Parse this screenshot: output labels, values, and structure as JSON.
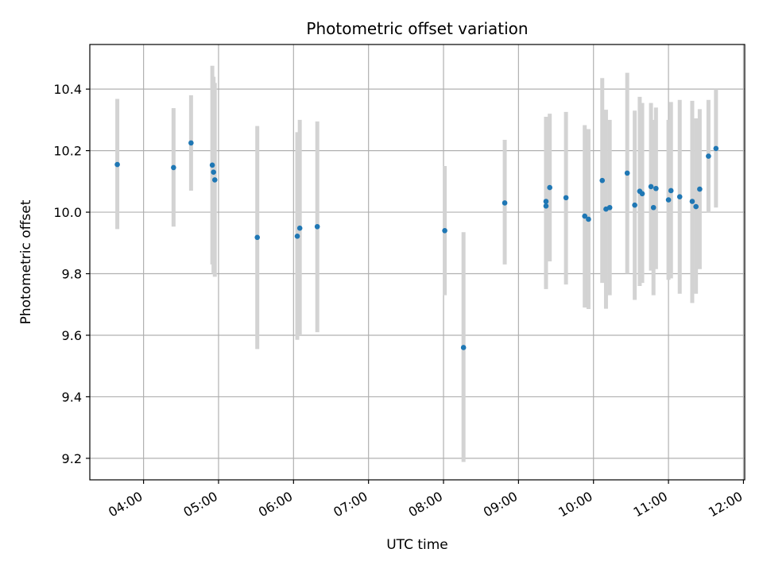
{
  "chart_data": {
    "type": "scatter",
    "title": "Photometric offset variation",
    "xlabel": "UTC time",
    "ylabel": "Photometric offset",
    "x_ticks": [
      "04:00",
      "05:00",
      "06:00",
      "07:00",
      "08:00",
      "09:00",
      "10:00",
      "11:00",
      "12:00"
    ],
    "y_ticks": [
      "9.2",
      "9.4",
      "9.6",
      "9.8",
      "10.0",
      "10.2",
      "10.4"
    ],
    "xlim": [
      "03:17",
      "12:01"
    ],
    "ylim": [
      9.13,
      10.545
    ],
    "grid": true,
    "colors": {
      "point": "#1f77b4",
      "errorbar": "#d3d3d3",
      "grid": "#b0b0b0"
    },
    "points": [
      {
        "x": "03:39",
        "y": 10.155,
        "lo": 9.945,
        "hi": 10.368
      },
      {
        "x": "04:24",
        "y": 10.145,
        "lo": 9.953,
        "hi": 10.338
      },
      {
        "x": "04:38",
        "y": 10.225,
        "lo": 10.07,
        "hi": 10.38
      },
      {
        "x": "04:55",
        "y": 10.153,
        "lo": 9.83,
        "hi": 10.476
      },
      {
        "x": "04:56",
        "y": 10.13,
        "lo": 9.8,
        "hi": 10.44
      },
      {
        "x": "04:57",
        "y": 10.105,
        "lo": 9.79,
        "hi": 10.42
      },
      {
        "x": "05:31",
        "y": 9.918,
        "lo": 9.555,
        "hi": 10.28
      },
      {
        "x": "06:03",
        "y": 9.922,
        "lo": 9.585,
        "hi": 10.26
      },
      {
        "x": "06:05",
        "y": 9.948,
        "lo": 9.6,
        "hi": 10.3
      },
      {
        "x": "06:19",
        "y": 9.953,
        "lo": 9.61,
        "hi": 10.295
      },
      {
        "x": "08:01",
        "y": 9.94,
        "lo": 9.73,
        "hi": 10.15
      },
      {
        "x": "08:16",
        "y": 9.56,
        "lo": 9.188,
        "hi": 9.935
      },
      {
        "x": "08:49",
        "y": 10.03,
        "lo": 9.83,
        "hi": 10.235
      },
      {
        "x": "09:22",
        "y": 10.035,
        "lo": 9.75,
        "hi": 10.31
      },
      {
        "x": "09:22",
        "y": 10.02,
        "lo": 9.76,
        "hi": 10.3
      },
      {
        "x": "09:25",
        "y": 10.08,
        "lo": 9.84,
        "hi": 10.32
      },
      {
        "x": "09:38",
        "y": 10.047,
        "lo": 9.765,
        "hi": 10.326
      },
      {
        "x": "09:53",
        "y": 9.987,
        "lo": 9.69,
        "hi": 10.283
      },
      {
        "x": "09:56",
        "y": 9.977,
        "lo": 9.685,
        "hi": 10.27
      },
      {
        "x": "10:07",
        "y": 10.103,
        "lo": 9.77,
        "hi": 10.436
      },
      {
        "x": "10:10",
        "y": 10.01,
        "lo": 9.686,
        "hi": 10.333
      },
      {
        "x": "10:13",
        "y": 10.015,
        "lo": 9.73,
        "hi": 10.3
      },
      {
        "x": "10:27",
        "y": 10.127,
        "lo": 9.8,
        "hi": 10.453
      },
      {
        "x": "10:33",
        "y": 10.023,
        "lo": 9.715,
        "hi": 10.33
      },
      {
        "x": "10:37",
        "y": 10.068,
        "lo": 9.76,
        "hi": 10.375
      },
      {
        "x": "10:39",
        "y": 10.06,
        "lo": 9.77,
        "hi": 10.355
      },
      {
        "x": "10:46",
        "y": 10.083,
        "lo": 9.81,
        "hi": 10.355
      },
      {
        "x": "10:48",
        "y": 10.015,
        "lo": 9.73,
        "hi": 10.3
      },
      {
        "x": "10:50",
        "y": 10.077,
        "lo": 9.815,
        "hi": 10.34
      },
      {
        "x": "11:00",
        "y": 10.04,
        "lo": 9.78,
        "hi": 10.3
      },
      {
        "x": "11:02",
        "y": 10.07,
        "lo": 9.785,
        "hi": 10.358
      },
      {
        "x": "11:09",
        "y": 10.05,
        "lo": 9.735,
        "hi": 10.365
      },
      {
        "x": "11:19",
        "y": 10.035,
        "lo": 9.705,
        "hi": 10.362
      },
      {
        "x": "11:22",
        "y": 10.018,
        "lo": 9.735,
        "hi": 10.305
      },
      {
        "x": "11:25",
        "y": 10.075,
        "lo": 9.815,
        "hi": 10.335
      },
      {
        "x": "11:32",
        "y": 10.182,
        "lo": 9.998,
        "hi": 10.365
      },
      {
        "x": "11:38",
        "y": 10.207,
        "lo": 10.015,
        "hi": 10.4
      }
    ]
  }
}
